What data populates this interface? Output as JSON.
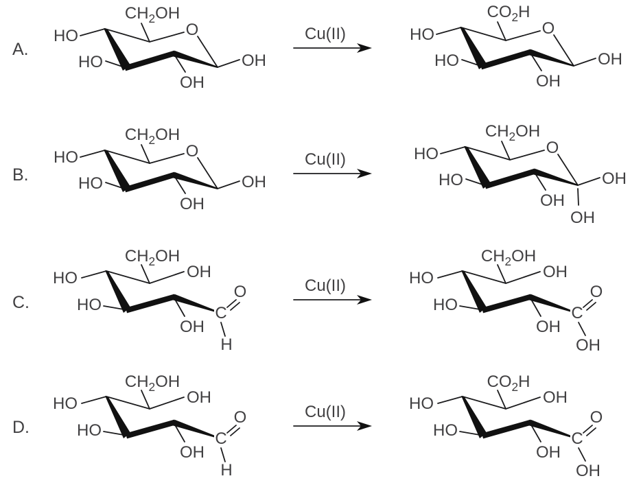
{
  "colors": {
    "bond": "#1c1c1e",
    "text": "#414042"
  },
  "reactions": [
    {
      "label": "A.",
      "reagent": "Cu(II)",
      "left": {
        "top": "CH₂OH",
        "ring_o": "O",
        "ho_upper": "HO",
        "ho_lower": "HO",
        "oh_bottom": "OH",
        "oh_anomeric": "OH"
      },
      "right": {
        "top": "CO₂H",
        "ring_o": "O",
        "ho_upper": "HO",
        "ho_lower": "HO",
        "oh_bottom": "OH",
        "oh_anomeric": "OH"
      }
    },
    {
      "label": "B.",
      "reagent": "Cu(II)",
      "left": {
        "top": "CH₂OH",
        "ring_o": "O",
        "ho_upper": "HO",
        "ho_lower": "HO",
        "oh_bottom": "OH",
        "oh_anomeric": "OH"
      },
      "right": {
        "top": "CH₂OH",
        "ring_o": "O",
        "ho_upper": "HO",
        "ho_lower": "HO",
        "oh_bottom": "OH",
        "oh_anomeric": "OH",
        "oh_gem": "OH"
      }
    },
    {
      "label": "C.",
      "reagent": "Cu(II)",
      "left": {
        "top": "CH₂OH",
        "oh_c5": "OH",
        "ho_upper": "HO",
        "ho_lower": "HO",
        "oh_c2": "OH",
        "carbonyl_c": "C",
        "carbonyl_o": "O",
        "aldehyde_h": "H"
      },
      "right": {
        "top": "CH₂OH",
        "oh_c5": "OH",
        "ho_upper": "HO",
        "ho_lower": "HO",
        "oh_c2": "OH",
        "carbonyl_c": "C",
        "carbonyl_o": "O",
        "acid_oh": "OH"
      }
    },
    {
      "label": "D.",
      "reagent": "Cu(II)",
      "left": {
        "top": "CH₂OH",
        "oh_c5": "OH",
        "ho_upper": "HO",
        "ho_lower": "HO",
        "oh_c2": "OH",
        "carbonyl_c": "C",
        "carbonyl_o": "O",
        "aldehyde_h": "H"
      },
      "right": {
        "top": "CO₂H",
        "oh_c5": "OH",
        "ho_upper": "HO",
        "ho_lower": "HO",
        "oh_c2": "OH",
        "carbonyl_c": "C",
        "carbonyl_o": "O",
        "acid_oh": "OH"
      }
    }
  ]
}
